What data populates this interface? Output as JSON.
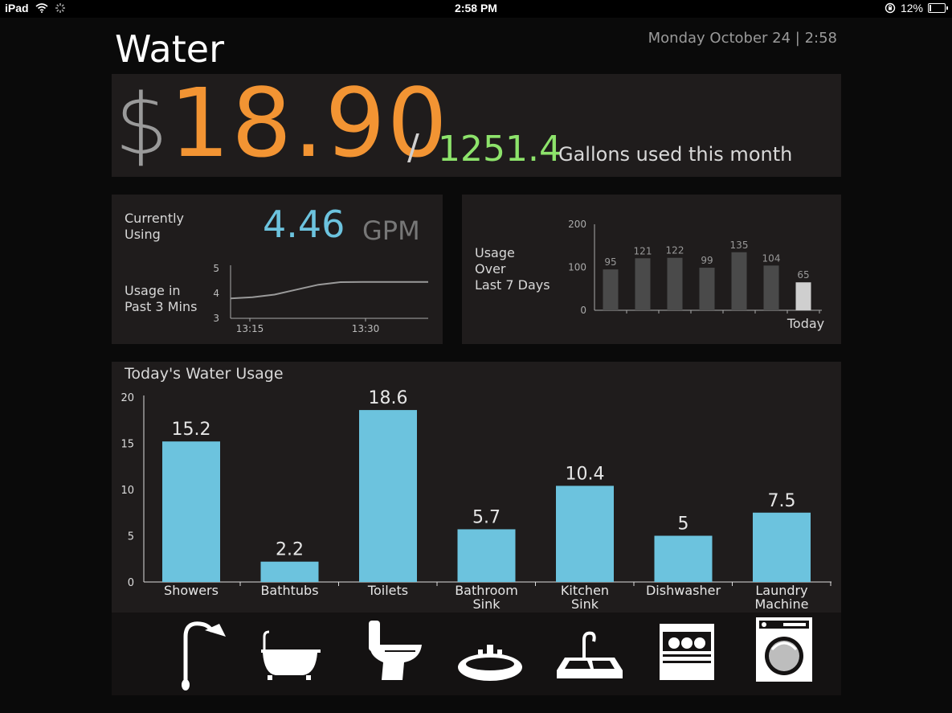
{
  "status_bar": {
    "device": "iPad",
    "time": "2:58 PM",
    "battery": "12%",
    "battery_level": 0.12
  },
  "header": {
    "title": "Water",
    "date": "Monday October 24 | 2:58"
  },
  "summary": {
    "currency_symbol": "$",
    "cost": "18.90",
    "separator": "/",
    "gallons": "1251.4",
    "gallons_label": "Gallons used this month"
  },
  "current": {
    "label_line1": "Currently",
    "label_line2": "Using",
    "value": "4.46",
    "unit": "GPM",
    "history_label_line1": "Usage in",
    "history_label_line2": "Past 3 Mins"
  },
  "weekly": {
    "label_line1": "Usage",
    "label_line2": "Over",
    "label_line3": "Last 7 Days"
  },
  "today": {
    "title": "Today's Water Usage"
  },
  "colors": {
    "cost": "#f29433",
    "gallons": "#8de36b",
    "gpm": "#6cc3de",
    "bar_today": "#6cc3de",
    "bar_week": "#4a4a4a",
    "bar_week_today": "#cfcfcf"
  },
  "icons": [
    "shower-icon",
    "bathtub-icon",
    "toilet-icon",
    "bathroom-sink-icon",
    "kitchen-sink-icon",
    "dishwasher-icon",
    "washing-machine-icon"
  ],
  "chart_data": [
    {
      "type": "line",
      "x_ticks": [
        "13:15",
        "13:30"
      ],
      "y_ticks": [
        3,
        4,
        5
      ],
      "ylim": [
        3,
        5
      ],
      "series": [
        {
          "values": [
            3.8,
            3.85,
            3.95,
            4.15,
            4.35,
            4.45,
            4.46,
            4.46,
            4.46,
            4.46
          ]
        }
      ]
    },
    {
      "type": "bar",
      "categories": [
        "",
        "",
        "",
        "",
        "",
        "",
        "Today"
      ],
      "values": [
        95,
        121,
        122,
        99,
        135,
        104,
        65
      ],
      "y_ticks": [
        0,
        100,
        200
      ],
      "ylim": [
        0,
        200
      ]
    },
    {
      "type": "bar",
      "title": "Today's Water Usage",
      "categories": [
        "Showers",
        "Bathtubs",
        "Toilets",
        "Bathroom Sink",
        "Kitchen Sink",
        "Dishwasher",
        "Laundry Machine"
      ],
      "values": [
        15.2,
        2.2,
        18.6,
        5.7,
        10.4,
        5,
        7.5
      ],
      "y_ticks": [
        0,
        5,
        10,
        15,
        20
      ],
      "ylim": [
        0,
        20
      ]
    }
  ]
}
